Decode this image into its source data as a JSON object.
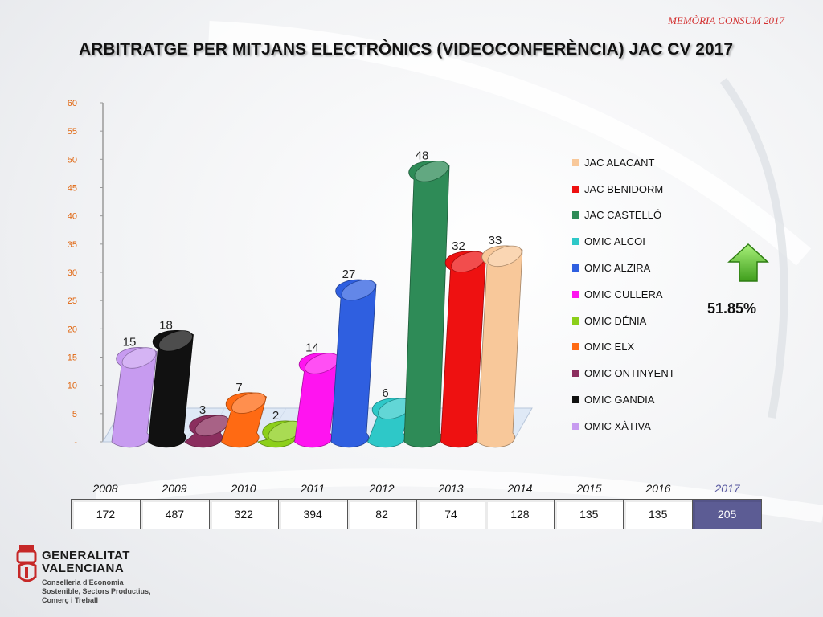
{
  "header": {
    "tag": "MEMÒRIA CONSUM 2017",
    "title": "ARBITRATGE PER MITJANS ELECTRÒNICS (VIDEOCONFERÈNCIA) JAC CV 2017"
  },
  "chart_data": {
    "type": "bar",
    "title": "",
    "xlabel": "",
    "ylabel": "",
    "ylim": [
      0,
      60
    ],
    "yticks": [
      "-",
      "5",
      "10",
      "15",
      "20",
      "25",
      "30",
      "35",
      "40",
      "45",
      "50",
      "55",
      "60"
    ],
    "legend_position": "right",
    "grid": false,
    "series": [
      {
        "name": "OMIC XÀTIVA",
        "value": 15,
        "label": "15",
        "color": "#c79bf0"
      },
      {
        "name": "OMIC GANDIA",
        "value": 18,
        "label": "18",
        "color": "#111111"
      },
      {
        "name": "OMIC ONTINYENT",
        "value": 3,
        "label": "3",
        "color": "#8b2e5e"
      },
      {
        "name": "OMIC ELX",
        "value": 7,
        "label": "7",
        "color": "#ff6a13"
      },
      {
        "name": "OMIC DÉNIA",
        "value": 2,
        "label": "2",
        "color": "#8ccf1a"
      },
      {
        "name": "OMIC CULLERA",
        "value": 14,
        "label": "14",
        "color": "#ff14f0"
      },
      {
        "name": "OMIC ALZIRA",
        "value": 27,
        "label": "27",
        "color": "#2f5fe0"
      },
      {
        "name": "OMIC ALCOI",
        "value": 6,
        "label": "6",
        "color": "#2ec8c8"
      },
      {
        "name": "JAC CASTELLÓ",
        "value": 48,
        "label": "48",
        "color": "#2e8b57"
      },
      {
        "name": "JAC BENIDORM",
        "value": 32,
        "label": "32",
        "color": "#ee1111"
      },
      {
        "name": "JAC ALACANT",
        "value": 33,
        "label": "33",
        "color": "#f8c89a"
      }
    ],
    "legend": [
      "JAC ALACANT",
      "JAC BENIDORM",
      "JAC CASTELLÓ",
      "OMIC ALCOI",
      "OMIC ALZIRA",
      "OMIC CULLERA",
      "OMIC DÉNIA",
      "OMIC ELX",
      "OMIC ONTINYENT",
      "OMIC GANDIA",
      "OMIC XÀTIVA"
    ]
  },
  "growth": {
    "value": "51.85%",
    "icon": "green-up-arrow-icon"
  },
  "yearly_table": {
    "years": [
      "2008",
      "2009",
      "2010",
      "2011",
      "2012",
      "2013",
      "2014",
      "2015",
      "2016",
      "2017"
    ],
    "values": [
      "172",
      "487",
      "322",
      "394",
      "82",
      "74",
      "128",
      "135",
      "135",
      "205"
    ]
  },
  "logo": {
    "name_line1": "GENERALITAT",
    "name_line2": "VALENCIANA",
    "sub_line1": "Conselleria d'Economia",
    "sub_line2": "Sostenible, Sectors Productius,",
    "sub_line3": "Comerç i Treball",
    "color": "#c62828"
  }
}
